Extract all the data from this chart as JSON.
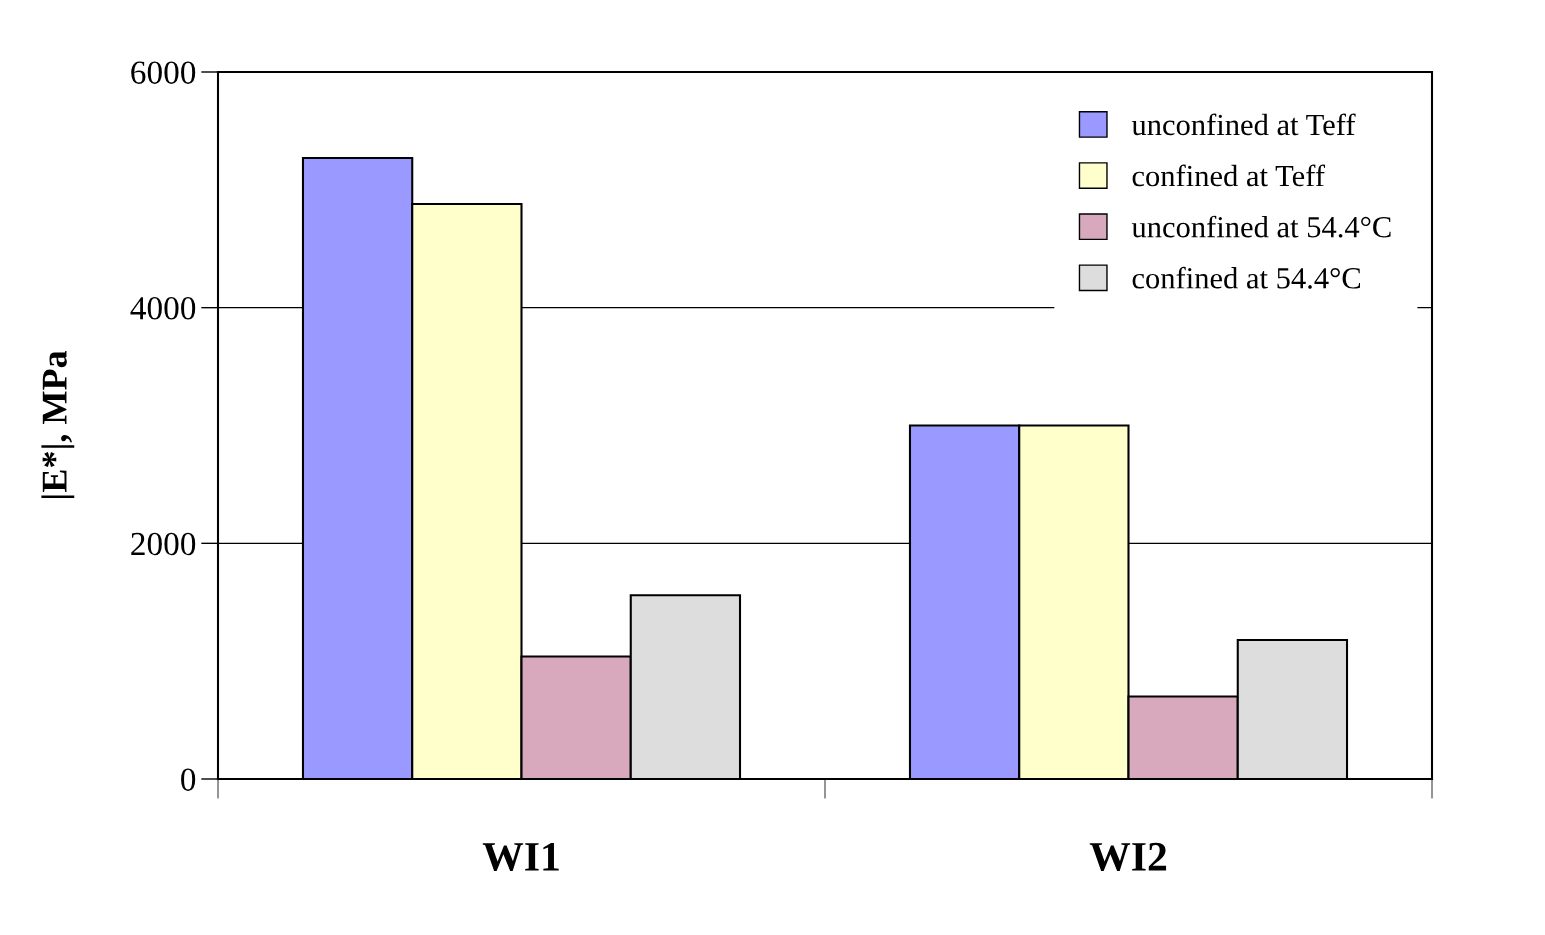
{
  "chart_data": {
    "type": "bar",
    "ylabel": "|E*|, MPa",
    "categories": [
      "WI1",
      "WI2"
    ],
    "series": [
      {
        "name": "unconfined at Teff",
        "color": "#9999ff",
        "values": [
          5270,
          3000
        ]
      },
      {
        "name": "confined at Teff",
        "color": "#ffffcc",
        "values": [
          4880,
          3000
        ]
      },
      {
        "name": "unconfined at 54.4°C",
        "color": "#d8a8bc",
        "values": [
          1040,
          700
        ]
      },
      {
        "name": "confined at 54.4°C",
        "color": "#dddddd",
        "values": [
          1560,
          1180
        ]
      }
    ],
    "ylim": [
      0,
      6000
    ],
    "yticks": [
      0,
      2000,
      4000,
      6000
    ],
    "grid": "y",
    "legend": "top right"
  }
}
